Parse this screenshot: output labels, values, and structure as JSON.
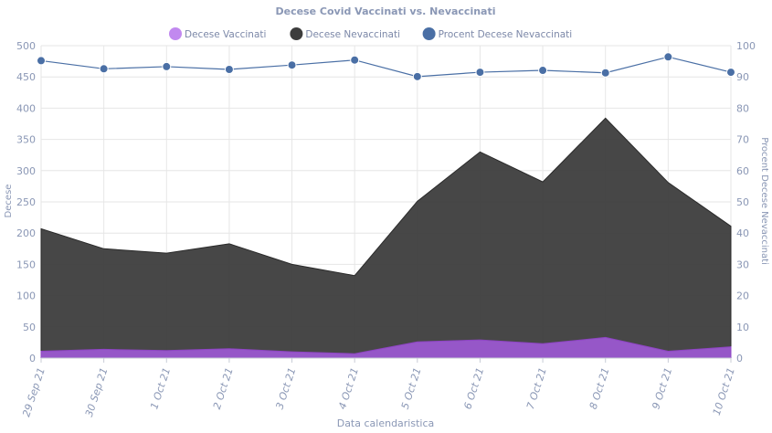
{
  "chart_data": {
    "type": "area",
    "title": "Decese Covid Vaccinati vs. Nevaccinati",
    "xlabel": "Data calendaristica",
    "ylabel": "Decese",
    "y2label": "Procent Decese Nevaccinati",
    "ylim": [
      0,
      500
    ],
    "y2lim": [
      0,
      100
    ],
    "yticks": [
      "0",
      "50",
      "100",
      "150",
      "200",
      "250",
      "300",
      "350",
      "400",
      "450",
      "500"
    ],
    "y2ticks": [
      "0",
      "10",
      "20",
      "30",
      "40",
      "50",
      "60",
      "70",
      "80",
      "90",
      "100"
    ],
    "categories": [
      "29 Sep 21",
      "30 Sep 21",
      "1 Oct 21",
      "2 Oct 21",
      "3 Oct 21",
      "4 Oct 21",
      "5 Oct 21",
      "6 Oct 21",
      "7 Oct 21",
      "8 Oct 21",
      "9 Oct 21",
      "10 Oct 21"
    ],
    "series": [
      {
        "name": "Decese Vaccinati",
        "axis": "left",
        "kind": "area",
        "color": "#9b59d0",
        "values": [
          11,
          14,
          12,
          15,
          10,
          7,
          26,
          29,
          23,
          33,
          11,
          18
        ]
      },
      {
        "name": "Decese Nevaccinati",
        "axis": "left",
        "kind": "area",
        "color": "#3d3d3d",
        "values": [
          207,
          175,
          168,
          183,
          150,
          132,
          251,
          330,
          282,
          384,
          281,
          211
        ]
      },
      {
        "name": "Procent Decese Nevaccinati",
        "axis": "right",
        "kind": "line",
        "color": "#4a6fa5",
        "values": [
          95.2,
          92.6,
          93.3,
          92.4,
          93.8,
          95.4,
          90.1,
          91.5,
          92.1,
          91.3,
          96.4,
          91.5
        ]
      }
    ],
    "legend_position": "top-center"
  },
  "colors": {
    "axis_text": "#8a97b5",
    "grid": "#e6e6e6",
    "title": "#8a97b5"
  }
}
